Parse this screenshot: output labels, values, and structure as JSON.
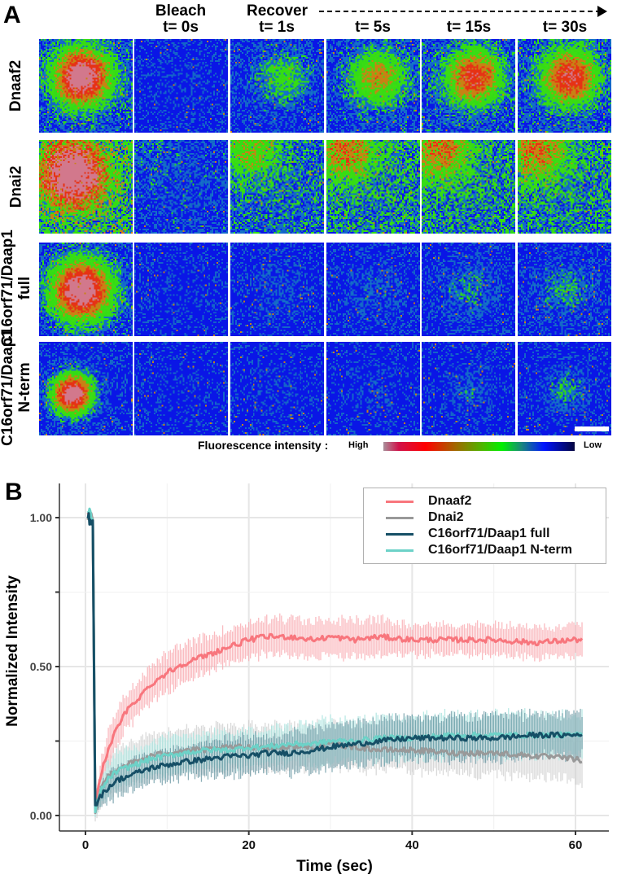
{
  "panel_a": {
    "letter": "A",
    "columns": [
      {
        "label": "",
        "time": ""
      },
      {
        "label": "Bleach",
        "time": "t= 0s"
      },
      {
        "label": "",
        "time": "t= 1s"
      },
      {
        "label": "",
        "time": "t= 5s"
      },
      {
        "label": "",
        "time": "t= 15s"
      },
      {
        "label": "",
        "time": "t= 30s"
      }
    ],
    "recover_label": "Recover",
    "rows": [
      {
        "label_lines": [
          "Dnaaf2"
        ],
        "spot": [
          0.45,
          0.4,
          0.28
        ],
        "recovery": [
          0.0,
          0.25,
          0.5,
          0.7,
          0.75
        ],
        "recovered_center": [
          0.55,
          0.4
        ],
        "diffuse": 0.15
      },
      {
        "label_lines": [
          "Dnai2"
        ],
        "spot": [
          0.35,
          0.35,
          0.32
        ],
        "recovery": [
          0.05,
          0.3,
          0.45,
          0.45,
          0.45
        ],
        "recovered_center": [
          0.2,
          0.1
        ],
        "diffuse": 0.45
      },
      {
        "label_lines": [
          "C16orf71/Daap1",
          "full"
        ],
        "spot": [
          0.45,
          0.5,
          0.3
        ],
        "recovery": [
          0.0,
          0.05,
          0.08,
          0.12,
          0.15
        ],
        "recovered_center": [
          0.5,
          0.5
        ],
        "diffuse": 0.1
      },
      {
        "label_lines": [
          "C16orf71/Daap1",
          "N-term"
        ],
        "spot": [
          0.35,
          0.55,
          0.2
        ],
        "recovery": [
          0.0,
          0.02,
          0.05,
          0.1,
          0.18
        ],
        "recovered_center": [
          0.5,
          0.5
        ],
        "diffuse": 0.05
      }
    ],
    "colorbar": {
      "label": "Fluorescence intensity :",
      "high": "High",
      "low": "Low"
    }
  },
  "panel_b": {
    "letter": "B"
  },
  "chart_data": {
    "type": "line",
    "title": "",
    "xlabel": "Time (sec)",
    "ylabel": "Normalized Intensity",
    "xlim": [
      -2.5,
      64
    ],
    "ylim": [
      -0.07,
      1.1
    ],
    "xticks": [
      0,
      20,
      40,
      60
    ],
    "xtick_labels": [
      "0",
      "20",
      "40",
      "60"
    ],
    "yticks": [
      0.0,
      0.25,
      0.5,
      0.75,
      1.0
    ],
    "ytick_labels": [
      "0.00",
      "",
      "0.50",
      "",
      "1.00"
    ],
    "grid": true,
    "legend_position": "top-right",
    "series": [
      {
        "name": "Dnaaf2",
        "color": "#f8767d",
        "band_color": "#f9aab0",
        "x": [
          0.3,
          0.6,
          0.9,
          1.2,
          1.5,
          2,
          3,
          4,
          5,
          6,
          8,
          10,
          12,
          15,
          18,
          20,
          22,
          25,
          28,
          30,
          33,
          36,
          40,
          45,
          50,
          55,
          60,
          61
        ],
        "y": [
          1.0,
          1.0,
          0.99,
          0.03,
          0.08,
          0.15,
          0.24,
          0.3,
          0.35,
          0.38,
          0.44,
          0.48,
          0.51,
          0.54,
          0.57,
          0.59,
          0.6,
          0.6,
          0.59,
          0.6,
          0.59,
          0.6,
          0.59,
          0.59,
          0.59,
          0.58,
          0.59,
          0.59
        ],
        "err": [
          0.03,
          0.03,
          0.03,
          0.02,
          0.03,
          0.05,
          0.06,
          0.06,
          0.06,
          0.06,
          0.06,
          0.06,
          0.06,
          0.06,
          0.06,
          0.06,
          0.06,
          0.06,
          0.06,
          0.06,
          0.06,
          0.06,
          0.05,
          0.05,
          0.05,
          0.05,
          0.05,
          0.05
        ]
      },
      {
        "name": "Dnai2",
        "color": "#999999",
        "band_color": "#cfcfcf",
        "x": [
          0.3,
          0.6,
          0.9,
          1.2,
          1.5,
          2,
          3,
          4,
          5,
          6,
          8,
          10,
          12,
          15,
          18,
          20,
          22,
          25,
          28,
          30,
          33,
          36,
          40,
          45,
          50,
          55,
          60,
          61
        ],
        "y": [
          1.0,
          1.0,
          0.99,
          0.0,
          0.05,
          0.1,
          0.14,
          0.16,
          0.17,
          0.18,
          0.2,
          0.21,
          0.22,
          0.22,
          0.23,
          0.23,
          0.23,
          0.23,
          0.23,
          0.24,
          0.23,
          0.22,
          0.22,
          0.21,
          0.21,
          0.2,
          0.19,
          0.18
        ],
        "err": [
          0.03,
          0.03,
          0.03,
          0.02,
          0.04,
          0.06,
          0.07,
          0.07,
          0.07,
          0.07,
          0.07,
          0.07,
          0.07,
          0.07,
          0.07,
          0.07,
          0.07,
          0.07,
          0.07,
          0.07,
          0.07,
          0.07,
          0.07,
          0.07,
          0.07,
          0.07,
          0.07,
          0.07
        ]
      },
      {
        "name": "C16orf71/Daap1 full",
        "color": "#164f66",
        "band_color": "#5d8e9b",
        "x": [
          0.3,
          0.6,
          0.9,
          1.2,
          1.5,
          2,
          3,
          4,
          5,
          6,
          8,
          10,
          12,
          15,
          18,
          20,
          22,
          25,
          28,
          30,
          33,
          36,
          40,
          45,
          50,
          55,
          60,
          61
        ],
        "y": [
          1.0,
          1.0,
          0.99,
          0.03,
          0.05,
          0.07,
          0.1,
          0.12,
          0.13,
          0.14,
          0.16,
          0.17,
          0.18,
          0.19,
          0.2,
          0.2,
          0.21,
          0.21,
          0.22,
          0.23,
          0.24,
          0.25,
          0.26,
          0.26,
          0.26,
          0.27,
          0.27,
          0.28
        ],
        "err": [
          0.03,
          0.03,
          0.03,
          0.02,
          0.03,
          0.04,
          0.05,
          0.05,
          0.05,
          0.05,
          0.05,
          0.05,
          0.05,
          0.06,
          0.06,
          0.06,
          0.06,
          0.07,
          0.07,
          0.07,
          0.07,
          0.07,
          0.07,
          0.07,
          0.07,
          0.07,
          0.07,
          0.07
        ]
      },
      {
        "name": "C16orf71/Daap1 N-term",
        "color": "#6dd2c8",
        "band_color": "#a9e3de",
        "x": [
          0.3,
          0.6,
          0.9,
          1.2,
          1.5,
          2,
          3,
          4,
          5,
          6,
          8,
          10,
          12,
          15,
          18,
          20,
          22,
          25,
          28,
          30,
          33,
          36,
          40,
          45,
          50,
          55,
          60,
          61
        ],
        "y": [
          1.02,
          1.0,
          0.99,
          0.02,
          0.05,
          0.09,
          0.13,
          0.15,
          0.16,
          0.17,
          0.19,
          0.2,
          0.21,
          0.22,
          0.22,
          0.23,
          0.23,
          0.24,
          0.24,
          0.25,
          0.25,
          0.26,
          0.26,
          0.27,
          0.27,
          0.27,
          0.27,
          0.27
        ],
        "err": [
          0.03,
          0.03,
          0.03,
          0.02,
          0.03,
          0.05,
          0.06,
          0.06,
          0.06,
          0.06,
          0.06,
          0.06,
          0.06,
          0.06,
          0.06,
          0.06,
          0.06,
          0.06,
          0.07,
          0.07,
          0.07,
          0.07,
          0.07,
          0.07,
          0.07,
          0.07,
          0.07,
          0.07
        ]
      }
    ]
  }
}
